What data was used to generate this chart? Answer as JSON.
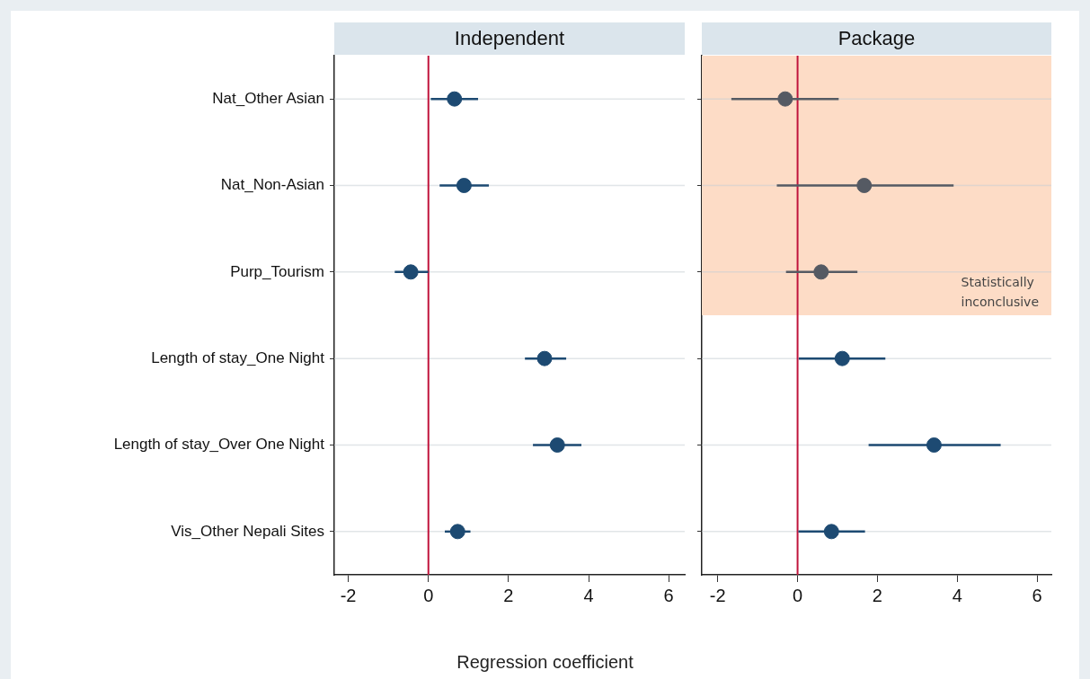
{
  "chart_data": [
    {
      "type": "scatter",
      "title": "Independent",
      "xlabel": "Regression coefficient",
      "orientation": "horizontal",
      "categories": [
        "Nat_Other Asian",
        "Nat_Non-Asian",
        "Purp_Tourism",
        "Length of stay_One Night",
        "Length of stay_Over One Night",
        "Vis_Other Nepali Sites"
      ],
      "values": [
        0.65,
        0.89,
        -0.44,
        2.9,
        3.22,
        0.73
      ],
      "errors": [
        [
          0.06,
          1.24
        ],
        [
          0.28,
          1.51
        ],
        [
          -0.84,
          0.0
        ],
        [
          2.41,
          3.44
        ],
        [
          2.61,
          3.82
        ],
        [
          0.41,
          1.05
        ]
      ],
      "color": "#1d4a72",
      "xlim": [
        -2.35,
        6.4
      ],
      "xticks": [
        -2,
        0,
        2,
        4,
        6
      ],
      "ref_lines": [
        {
          "axis": "x",
          "value": 0,
          "color": "#c0143c"
        }
      ],
      "grid": "y",
      "legend": false,
      "marker": "circle"
    },
    {
      "type": "scatter",
      "title": "Package",
      "orientation": "horizontal",
      "categories": [
        "Nat_Other Asian",
        "Nat_Non-Asian",
        "Purp_Tourism",
        "Length of stay_One Night",
        "Length of stay_Over One Night",
        "Vis_Other Nepali Sites"
      ],
      "values": [
        -0.31,
        1.67,
        0.59,
        1.12,
        3.42,
        0.85
      ],
      "errors": [
        [
          -1.66,
          1.03
        ],
        [
          -0.52,
          3.91
        ],
        [
          -0.29,
          1.5
        ],
        [
          0.03,
          2.2
        ],
        [
          1.78,
          5.09
        ],
        [
          0.02,
          1.69
        ]
      ],
      "colors": [
        "#555a63",
        "#555a63",
        "#555a63",
        "#1d4a72",
        "#1d4a72",
        "#1d4a72"
      ],
      "xlim": [
        -2.4,
        6.36
      ],
      "xticks": [
        -2,
        0,
        2,
        4,
        6
      ],
      "ref_lines": [
        {
          "axis": "x",
          "value": 0,
          "color": "#c0143c"
        }
      ],
      "bands": [
        {
          "axis": "y",
          "from": "Nat_Other Asian",
          "to": "Purp_Tourism",
          "label": "Statistically inconclusive",
          "color": "#fddcc6"
        }
      ],
      "grid": "y",
      "legend": false,
      "marker": "circle",
      "tick_labels": "x"
    }
  ]
}
